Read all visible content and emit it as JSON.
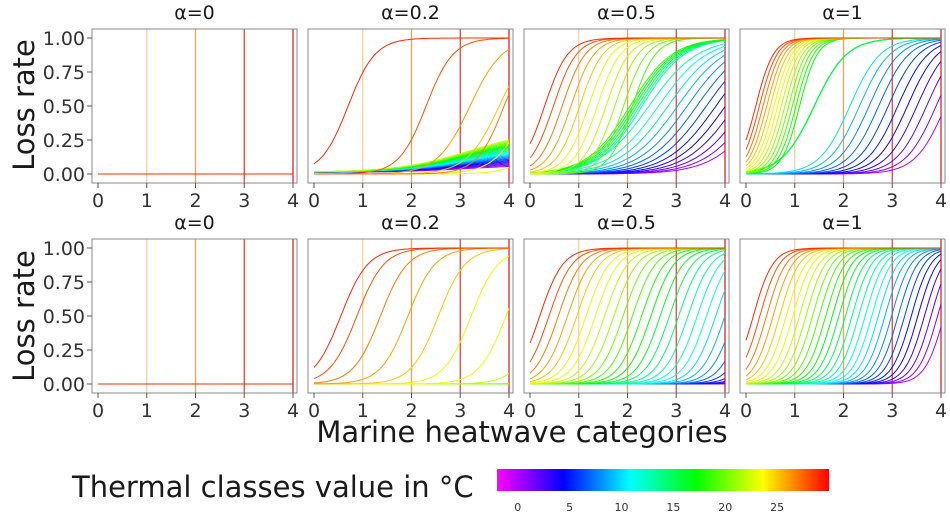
{
  "chart_data": {
    "type": "line",
    "xlabel": "Marine heatwave categories",
    "ylabel": "Loss rate",
    "xticks": [
      "0",
      "1",
      "2",
      "3",
      "4"
    ],
    "yticks": [
      "0.00",
      "0.25",
      "0.50",
      "0.75",
      "1.00"
    ],
    "xlim": [
      0,
      4
    ],
    "ylim": [
      0,
      1
    ],
    "grid": false,
    "category_lines": [
      1,
      2,
      3,
      4
    ],
    "category_line_colors": [
      "#f7d29a",
      "#f0a058",
      "#e8453c",
      "#d9262a"
    ],
    "thermal_classes": [
      0,
      1,
      2,
      3,
      4,
      5,
      6,
      7,
      8,
      9,
      10,
      11,
      12,
      13,
      14,
      15,
      16,
      17,
      18,
      19,
      20,
      21,
      22,
      23,
      24,
      25,
      26,
      27,
      28,
      29
    ],
    "rows": [
      {
        "panels": [
          {
            "title": "α=0",
            "alpha": 0
          },
          {
            "title": "α=0.2",
            "alpha": 0.2
          },
          {
            "title": "α=0.5",
            "alpha": 0.5
          },
          {
            "title": "α=1",
            "alpha": 1
          }
        ]
      },
      {
        "panels": [
          {
            "title": "α=0",
            "alpha": 0
          },
          {
            "title": "α=0.2",
            "alpha": 0.2
          },
          {
            "title": "α=0.5",
            "alpha": 0.5
          },
          {
            "title": "α=1",
            "alpha": 1
          }
        ]
      }
    ],
    "colorbar": {
      "label": "Thermal classes value in °C",
      "ticks": [
        "0",
        "5",
        "10",
        "15",
        "20",
        "25"
      ],
      "range": [
        -2,
        30
      ],
      "colors": [
        "#ff00ff",
        "#0000ff",
        "#00ffff",
        "#00ff00",
        "#ffff00",
        "#ff0000"
      ]
    }
  }
}
